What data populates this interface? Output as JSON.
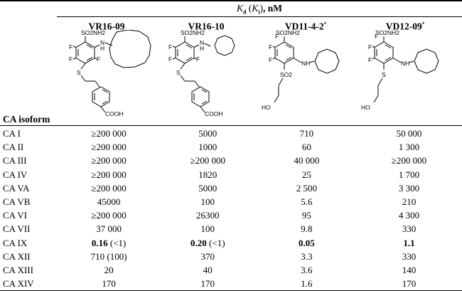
{
  "header": {
    "kd_symbol": "K",
    "kd_sub": "d",
    "ki_symbol": "K",
    "ki_sub": "i",
    "unit": ", nM",
    "isoform_label": "CA isoform"
  },
  "compounds": [
    {
      "name": "VR16-09",
      "mark": "",
      "labels": {
        "sulfonamide": "SO2NH2",
        "nh": "N",
        "h": "H",
        "f": "F",
        "s": "S",
        "acid": "COOH"
      }
    },
    {
      "name": "VR16-10",
      "mark": "",
      "labels": {
        "sulfonamide": "SO2NH2",
        "nh": "N",
        "h": "H",
        "f": "F",
        "s": "S",
        "acid": "COOH"
      }
    },
    {
      "name": "VD11-4-2",
      "mark": "*",
      "labels": {
        "sulfonamide": "SO2NH2",
        "nh": "NH",
        "f": "F",
        "so2": "SO2",
        "ho": "HO"
      }
    },
    {
      "name": "VD12-09",
      "mark": "*",
      "labels": {
        "sulfonamide": "SO2NH2",
        "nh": "NH",
        "f": "F",
        "s": "S",
        "ho": "HO"
      }
    }
  ],
  "rows": [
    {
      "isoform": "CA I",
      "v1": "≥200 000",
      "v1x": "",
      "v2": "5000",
      "v2x": "",
      "v3": "710",
      "v4": "50 000"
    },
    {
      "isoform": "CA II",
      "v1": "≥200 000",
      "v1x": "",
      "v2": "1000",
      "v2x": "",
      "v3": "60",
      "v4": "1 300"
    },
    {
      "isoform": "CA III",
      "v1": "≥200 000",
      "v1x": "",
      "v2": "≥200 000",
      "v2x": "",
      "v3": "40 000",
      "v4": "≥200 000"
    },
    {
      "isoform": "CA IV",
      "v1": "≥200 000",
      "v1x": "",
      "v2": "1820",
      "v2x": "",
      "v3": "25",
      "v4": "1 700"
    },
    {
      "isoform": "CA VA",
      "v1": "≥200 000",
      "v1x": "",
      "v2": "5000",
      "v2x": "",
      "v3": "2 500",
      "v4": "3 300"
    },
    {
      "isoform": "CA VB",
      "v1": "45000",
      "v1x": "",
      "v2": "100",
      "v2x": "",
      "v3": "5.6",
      "v4": "210"
    },
    {
      "isoform": "CA VI",
      "v1": "≥200 000",
      "v1x": "",
      "v2": "26300",
      "v2x": "",
      "v3": "95",
      "v4": "4 300"
    },
    {
      "isoform": "CA VII",
      "v1": "37 000",
      "v1x": "",
      "v2": "100",
      "v2x": "",
      "v3": "9.8",
      "v4": "330"
    },
    {
      "isoform": "CA IX",
      "v1": "0.16",
      "v1x": " (<1)",
      "v2": "0.20",
      "v2x": " (<1)",
      "v3": "0.05",
      "v4": "1.1",
      "bold": true
    },
    {
      "isoform": "CA XII",
      "v1": "710 (100)",
      "v1x": "",
      "v2": "370",
      "v2x": "",
      "v3": "3.3",
      "v4": "330"
    },
    {
      "isoform": "CA XIII",
      "v1": "20",
      "v1x": "",
      "v2": "40",
      "v2x": "",
      "v3": "3.6",
      "v4": "140"
    },
    {
      "isoform": "CA XIV",
      "v1": "170",
      "v1x": "",
      "v2": "170",
      "v2x": "",
      "v3": "1.6",
      "v4": "170"
    }
  ]
}
